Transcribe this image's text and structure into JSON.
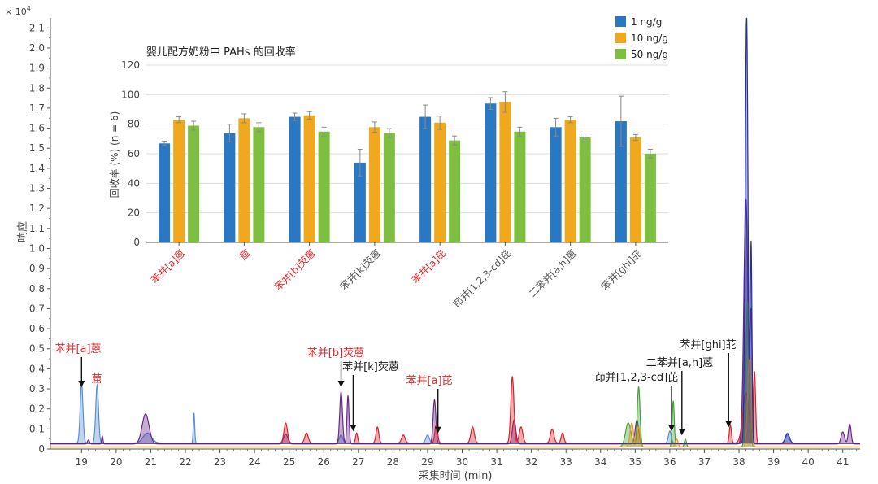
{
  "colors": {
    "blue": "#2a78c4",
    "orange": "#f0a81c",
    "green": "#7fbf3f",
    "red_label": "#e0282c",
    "black_label": "#222222",
    "axis": "#555555",
    "trace_blue": "#5b8fd4",
    "trace_purple": "#6a2a8a",
    "trace_red": "#d6242c",
    "trace_green": "#44a33c",
    "trace_orange": "#e89a20",
    "trace_navy": "#2a2f9a"
  },
  "chart_data": [
    {
      "type": "line",
      "title": "",
      "xlabel": "采集时间 (min)",
      "ylabel": "响应",
      "y_multiplier": "× 10",
      "y_multiplier_exp": "4",
      "xlim": [
        18.1,
        41.5
      ],
      "ylim": [
        0,
        2.15
      ],
      "x_ticks": [
        "19",
        "20",
        "21",
        "22",
        "23",
        "24",
        "25",
        "26",
        "27",
        "28",
        "29",
        "30",
        "31",
        "32",
        "33",
        "34",
        "35",
        "36",
        "37",
        "38",
        "39",
        "40",
        "41"
      ],
      "y_ticks": [
        "0",
        "0.1",
        "0.2",
        "0.3",
        "0.4",
        "0.5",
        "0.6",
        "0.7",
        "0.8",
        "0.9",
        "1.0",
        "1.1",
        "1.2",
        "1.3",
        "1.4",
        "1.5",
        "1.6",
        "1.7",
        "1.8",
        "1.9",
        "2.0",
        "2.1"
      ],
      "series": [
        {
          "name": "blue trace",
          "color_key": "trace_blue",
          "baseline": 0.03,
          "peaks": [
            [
              19.0,
              0.3,
              0.04
            ],
            [
              19.45,
              0.29,
              0.04
            ],
            [
              20.9,
              0.05,
              0.12
            ],
            [
              22.25,
              0.15,
              0.02
            ],
            [
              26.5,
              0.04,
              0.05
            ],
            [
              29.0,
              0.04,
              0.05
            ],
            [
              36.0,
              0.06,
              0.04
            ],
            [
              38.2,
              1.2,
              0.05
            ],
            [
              39.4,
              0.04,
              0.06
            ]
          ]
        },
        {
          "name": "purple trace",
          "color_key": "trace_purple",
          "baseline": 0.025,
          "peaks": [
            [
              19.2,
              0.02,
              0.03
            ],
            [
              19.6,
              0.04,
              0.02
            ],
            [
              20.85,
              0.15,
              0.1
            ],
            [
              24.9,
              0.05,
              0.06
            ],
            [
              26.5,
              0.26,
              0.04
            ],
            [
              26.7,
              0.24,
              0.03
            ],
            [
              29.2,
              0.22,
              0.04
            ],
            [
              31.5,
              0.12,
              0.05
            ],
            [
              35.05,
              0.12,
              0.05
            ],
            [
              38.2,
              1.22,
              0.06
            ],
            [
              38.35,
              0.62,
              0.03
            ],
            [
              41.0,
              0.06,
              0.05
            ],
            [
              41.2,
              0.1,
              0.04
            ]
          ]
        },
        {
          "name": "red trace",
          "color_key": "trace_red",
          "baseline": 0.03,
          "peaks": [
            [
              24.9,
              0.1,
              0.05
            ],
            [
              25.5,
              0.05,
              0.05
            ],
            [
              26.95,
              0.05,
              0.03
            ],
            [
              27.55,
              0.08,
              0.04
            ],
            [
              28.3,
              0.04,
              0.05
            ],
            [
              29.25,
              0.09,
              0.04
            ],
            [
              30.3,
              0.08,
              0.05
            ],
            [
              31.45,
              0.33,
              0.045
            ],
            [
              31.7,
              0.08,
              0.05
            ],
            [
              32.6,
              0.07,
              0.05
            ],
            [
              32.9,
              0.05,
              0.04
            ],
            [
              37.75,
              0.09,
              0.03
            ],
            [
              38.2,
              0.25,
              0.09
            ],
            [
              38.45,
              0.35,
              0.03
            ]
          ]
        },
        {
          "name": "green trace",
          "color_key": "trace_green",
          "baseline": 0.01,
          "peaks": [
            [
              34.8,
              0.12,
              0.08
            ],
            [
              35.1,
              0.3,
              0.04
            ],
            [
              36.1,
              0.23,
              0.03
            ],
            [
              36.45,
              0.04,
              0.03
            ],
            [
              38.25,
              0.72,
              0.05
            ]
          ]
        },
        {
          "name": "orange trace",
          "color_key": "trace_orange",
          "baseline": 0.01,
          "peaks": [
            [
              34.9,
              0.12,
              0.05
            ],
            [
              35.1,
              0.1,
              0.04
            ],
            [
              36.2,
              0.04,
              0.04
            ],
            [
              38.3,
              0.45,
              0.05
            ]
          ]
        },
        {
          "name": "navy trace",
          "color_key": "trace_navy",
          "baseline": 0.028,
          "peaks": [
            [
              38.22,
              2.13,
              0.04
            ],
            [
              38.35,
              1.0,
              0.025
            ],
            [
              39.4,
              0.05,
              0.06
            ]
          ]
        }
      ],
      "annotations": [
        {
          "text": "苯并[a]蒽",
          "color_key": "red_label",
          "x": 19.0,
          "y": 0.3,
          "arrow": true
        },
        {
          "text": "䓛",
          "color_key": "red_label",
          "x": 19.45,
          "y": 0.32,
          "arrow": false
        },
        {
          "text": "苯并[b]荧蒽",
          "color_key": "red_label",
          "x": 26.5,
          "y": 0.3,
          "arrow": true
        },
        {
          "text": "苯并[k]荧蒽",
          "color_key": "black_label",
          "x": 26.85,
          "y": 0.08,
          "arrow": true
        },
        {
          "text": "苯并[a]芘",
          "color_key": "red_label",
          "x": 29.3,
          "y": 0.07,
          "arrow": true
        },
        {
          "text": "茚并[1,2,3-cd]芘",
          "color_key": "black_label",
          "x": 36.05,
          "y": 0.08,
          "arrow": true
        },
        {
          "text": "二苯并[a,h]蒽",
          "color_key": "black_label",
          "x": 36.35,
          "y": 0.06,
          "arrow": true
        },
        {
          "text": "苯并[ghi]苝",
          "color_key": "black_label",
          "x": 37.7,
          "y": 0.1,
          "arrow": true
        }
      ]
    },
    {
      "type": "bar",
      "title": "婴儿配方奶粉中 PAHs 的回收率",
      "xlabel": "",
      "ylabel": "回收率 (%) (n = 6)",
      "ylim": [
        0,
        120
      ],
      "y_ticks": [
        "0",
        "20",
        "40",
        "60",
        "80",
        "100",
        "120"
      ],
      "categories": [
        "苯并[a]蒽",
        "䓛",
        "苯并[b]荧蒽",
        "苯并[k]荧蒽",
        "苯并[a]芘",
        "茚并[1,2,3-cd]芘",
        "二苯并[a,h]蒽",
        "苯并[ghi]苝"
      ],
      "category_colors": [
        "red_label",
        "red_label",
        "red_label",
        "axis",
        "red_label",
        "axis",
        "axis",
        "axis"
      ],
      "series": [
        {
          "name": "1 ng/g",
          "color_key": "blue",
          "values": [
            67,
            74,
            85,
            54,
            85,
            94,
            78,
            82
          ],
          "errors": [
            1.5,
            6,
            2.5,
            9,
            8,
            4,
            6,
            17
          ]
        },
        {
          "name": "10 ng/g",
          "color_key": "orange",
          "values": [
            83,
            84,
            86,
            78,
            81,
            95,
            83,
            71
          ],
          "errors": [
            2,
            3,
            2.5,
            3.5,
            4.5,
            7,
            2,
            2
          ]
        },
        {
          "name": "50 ng/g",
          "color_key": "green",
          "values": [
            79,
            78,
            75,
            74,
            69,
            75,
            71,
            60
          ],
          "errors": [
            3,
            3,
            3,
            3,
            3,
            3,
            3,
            3
          ]
        }
      ],
      "legend": {
        "position": "top-right"
      }
    }
  ]
}
